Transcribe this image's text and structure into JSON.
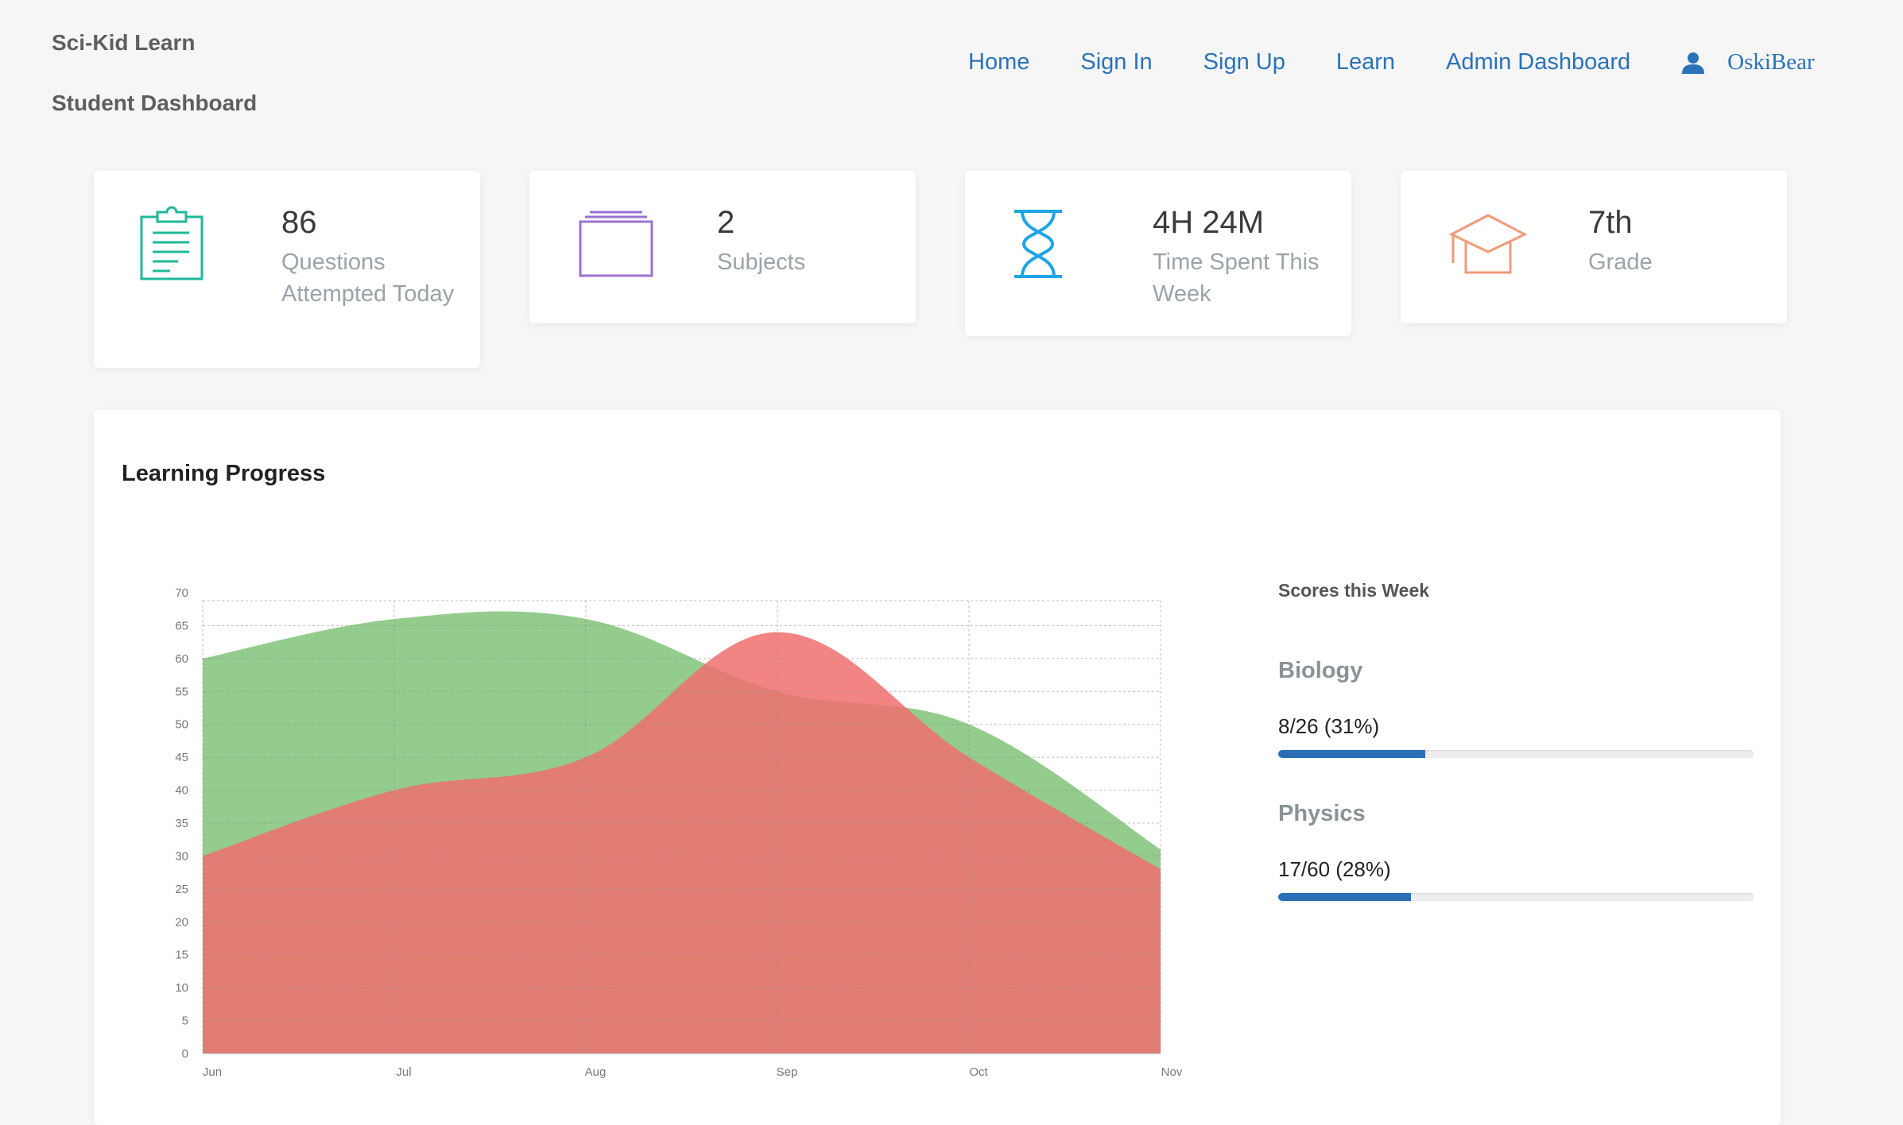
{
  "header": {
    "brand": "Sci-Kid Learn",
    "subtitle": "Student Dashboard",
    "nav": [
      "Home",
      "Sign In",
      "Sign Up",
      "Learn",
      "Admin Dashboard"
    ],
    "user": {
      "name": "OskiBear",
      "icon": "user-icon"
    }
  },
  "stats": [
    {
      "value": "86",
      "label": "Questions Attempted Today",
      "icon": "clipboard-icon",
      "color": "#1fb89a"
    },
    {
      "value": "2",
      "label": "Subjects",
      "icon": "folder-stack-icon",
      "color": "#9b72d1"
    },
    {
      "value": "4H 24M",
      "label": "Time Spent This Week",
      "icon": "hourglass-icon",
      "color": "#1ea5e6"
    },
    {
      "value": "7th",
      "label": "Grade",
      "icon": "graduation-cap-icon",
      "color": "#f19a78"
    }
  ],
  "progress": {
    "title": "Learning Progress",
    "chart_data": {
      "type": "area",
      "categories": [
        "Jun",
        "Jul",
        "Aug",
        "Sep",
        "Oct",
        "Nov"
      ],
      "y_ticks": [
        0,
        5,
        10,
        15,
        20,
        25,
        30,
        35,
        40,
        45,
        50,
        55,
        60,
        65,
        70
      ],
      "ylim": [
        0,
        70
      ],
      "grid": true,
      "series": [
        {
          "values": [
            60,
            66,
            66,
            55,
            50,
            31
          ],
          "color": "#87c77f"
        },
        {
          "values": [
            30,
            40,
            45,
            64,
            45,
            28
          ],
          "color": "#f06e6e"
        }
      ]
    }
  },
  "scores": {
    "title": "Scores this Week",
    "subjects": [
      {
        "name": "Biology",
        "score": "8/26 (31%)",
        "fraction": 0.31
      },
      {
        "name": "Physics",
        "score": "17/60 (28%)",
        "fraction": 0.28
      }
    ]
  }
}
